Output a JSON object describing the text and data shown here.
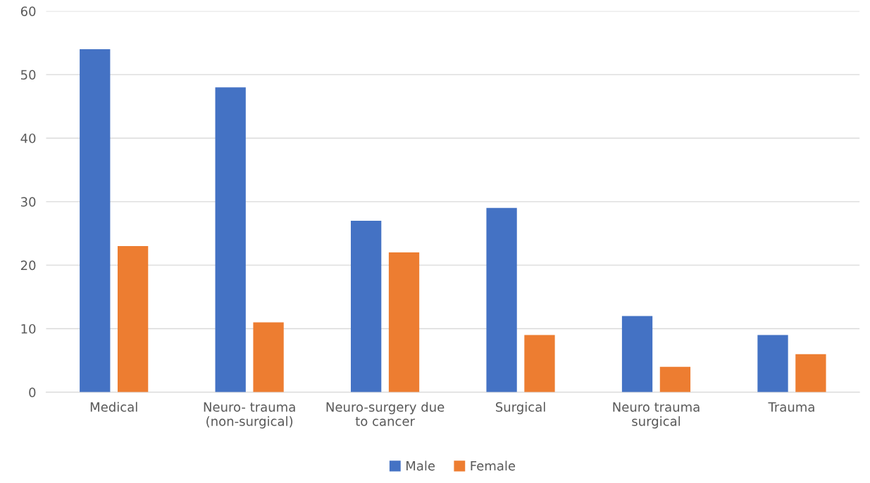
{
  "chart_data": {
    "type": "bar",
    "categories": [
      "Medical",
      "Neuro- trauma\n(non-surgical)",
      "Neuro-surgery due\nto cancer",
      "Surgical",
      "Neuro trauma\nsurgical",
      "Trauma"
    ],
    "series": [
      {
        "name": "Male",
        "color": "#4472c4",
        "values": [
          54,
          48,
          27,
          29,
          12,
          9
        ]
      },
      {
        "name": "Female",
        "color": "#ed7d31",
        "values": [
          23,
          11,
          22,
          9,
          4,
          6
        ]
      }
    ],
    "ylim": [
      0,
      60
    ],
    "yticks": [
      0,
      10,
      20,
      30,
      40,
      50,
      60
    ],
    "grid": "y",
    "legend": "bottom"
  }
}
